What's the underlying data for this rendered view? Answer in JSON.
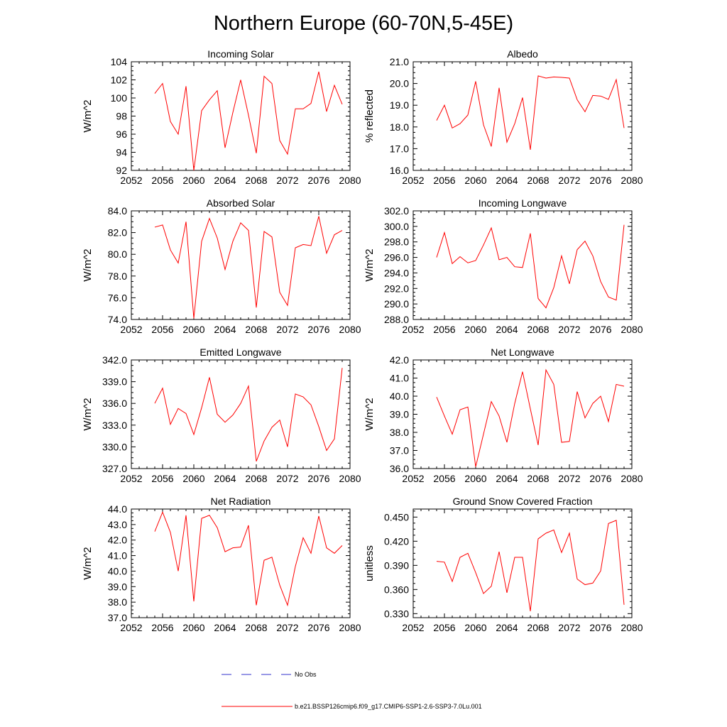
{
  "figure": {
    "title": "Northern Europe (60-70N,5-45E)"
  },
  "legend": {
    "entries": [
      {
        "label": "No Obs",
        "color": "#3333cc",
        "dashed": true
      },
      {
        "label": "b.e21.BSSP126cmip6.f09_g17.CMIP6-SSP1-2.6-SSP3-7.0Lu.001",
        "color": "#ff0000",
        "dashed": false
      }
    ]
  },
  "chart_data": [
    {
      "type": "line",
      "title": "Incoming Solar",
      "ylabel": "W/m^2",
      "xlim": [
        2052,
        2080
      ],
      "ylim": [
        92,
        104
      ],
      "xticks": [
        2052,
        2056,
        2060,
        2064,
        2068,
        2072,
        2076,
        2080
      ],
      "yticks": [
        92,
        94,
        96,
        98,
        100,
        102,
        104
      ],
      "ytick_labels": [
        "92",
        "94",
        "96",
        "98",
        "100",
        "102",
        "104"
      ],
      "series": [
        {
          "color": "#ff0000",
          "x": [
            2055,
            2056,
            2057,
            2058,
            2059,
            2060,
            2061,
            2062,
            2063,
            2064,
            2065,
            2066,
            2067,
            2068,
            2069,
            2070,
            2071,
            2072,
            2073,
            2074,
            2075,
            2076,
            2077,
            2078,
            2079
          ],
          "y": [
            100.5,
            101.6,
            97.4,
            96.0,
            101.3,
            92.0,
            98.6,
            99.8,
            100.8,
            94.5,
            98.4,
            102.0,
            98.1,
            93.9,
            102.4,
            101.6,
            95.3,
            93.8,
            98.8,
            98.8,
            99.4,
            102.9,
            98.5,
            101.4,
            99.3
          ]
        }
      ]
    },
    {
      "type": "line",
      "title": "Albedo",
      "ylabel": "% reflected",
      "xlim": [
        2052,
        2080
      ],
      "ylim": [
        16,
        21
      ],
      "xticks": [
        2052,
        2056,
        2060,
        2064,
        2068,
        2072,
        2076,
        2080
      ],
      "yticks": [
        16,
        17,
        18,
        19,
        20,
        21
      ],
      "ytick_labels": [
        "16.0",
        "17.0",
        "18.0",
        "19.0",
        "20.0",
        "21.0"
      ],
      "series": [
        {
          "color": "#ff0000",
          "x": [
            2055,
            2056,
            2057,
            2058,
            2059,
            2060,
            2061,
            2062,
            2063,
            2064,
            2065,
            2066,
            2067,
            2068,
            2069,
            2070,
            2071,
            2072,
            2073,
            2074,
            2075,
            2076,
            2077,
            2078,
            2079
          ],
          "y": [
            18.3,
            19.0,
            17.95,
            18.15,
            18.55,
            20.1,
            18.1,
            17.1,
            19.8,
            17.3,
            18.15,
            19.35,
            16.95,
            20.35,
            20.25,
            20.3,
            20.28,
            20.25,
            19.25,
            18.7,
            19.45,
            19.42,
            19.27,
            20.18,
            17.95
          ]
        }
      ]
    },
    {
      "type": "line",
      "title": "Absorbed Solar",
      "ylabel": "W/m^2",
      "xlim": [
        2052,
        2080
      ],
      "ylim": [
        74,
        84
      ],
      "xticks": [
        2052,
        2056,
        2060,
        2064,
        2068,
        2072,
        2076,
        2080
      ],
      "yticks": [
        74,
        76,
        78,
        80,
        82,
        84
      ],
      "ytick_labels": [
        "74.0",
        "76.0",
        "78.0",
        "80.0",
        "82.0",
        "84.0"
      ],
      "series": [
        {
          "color": "#ff0000",
          "x": [
            2055,
            2056,
            2057,
            2058,
            2059,
            2060,
            2061,
            2062,
            2063,
            2064,
            2065,
            2066,
            2067,
            2068,
            2069,
            2070,
            2071,
            2072,
            2073,
            2074,
            2075,
            2076,
            2077,
            2078,
            2079
          ],
          "y": [
            82.5,
            82.7,
            80.4,
            79.2,
            83.0,
            74.1,
            81.2,
            83.3,
            81.5,
            78.6,
            81.2,
            82.9,
            82.2,
            75.1,
            82.1,
            81.6,
            76.5,
            75.3,
            80.6,
            80.9,
            80.8,
            83.5,
            80.1,
            81.8,
            82.2
          ]
        }
      ]
    },
    {
      "type": "line",
      "title": "Incoming Longwave",
      "ylabel": "W/m^2",
      "xlim": [
        2052,
        2080
      ],
      "ylim": [
        288,
        302
      ],
      "xticks": [
        2052,
        2056,
        2060,
        2064,
        2068,
        2072,
        2076,
        2080
      ],
      "yticks": [
        288,
        290,
        292,
        294,
        296,
        298,
        300,
        302
      ],
      "ytick_labels": [
        "288.0",
        "290.0",
        "292.0",
        "294.0",
        "296.0",
        "298.0",
        "300.0",
        "302.0"
      ],
      "series": [
        {
          "color": "#ff0000",
          "x": [
            2055,
            2056,
            2057,
            2058,
            2059,
            2060,
            2061,
            2062,
            2063,
            2064,
            2065,
            2066,
            2067,
            2068,
            2069,
            2070,
            2071,
            2072,
            2073,
            2074,
            2075,
            2076,
            2077,
            2078,
            2079
          ],
          "y": [
            296.0,
            299.2,
            295.2,
            296.1,
            295.3,
            295.6,
            297.6,
            299.8,
            295.7,
            296.0,
            294.8,
            294.7,
            299.1,
            290.7,
            289.5,
            292.1,
            296.2,
            292.6,
            297.0,
            298.1,
            296.2,
            292.9,
            290.9,
            290.5,
            300.2
          ]
        }
      ]
    },
    {
      "type": "line",
      "title": "Emitted Longwave",
      "ylabel": "W/m^2",
      "xlim": [
        2052,
        2080
      ],
      "ylim": [
        327,
        342
      ],
      "xticks": [
        2052,
        2056,
        2060,
        2064,
        2068,
        2072,
        2076,
        2080
      ],
      "yticks": [
        327,
        330,
        333,
        336,
        339,
        342
      ],
      "ytick_labels": [
        "327.0",
        "330.0",
        "333.0",
        "336.0",
        "339.0",
        "342.0"
      ],
      "series": [
        {
          "color": "#ff0000",
          "x": [
            2055,
            2056,
            2057,
            2058,
            2059,
            2060,
            2061,
            2062,
            2063,
            2064,
            2065,
            2066,
            2067,
            2068,
            2069,
            2070,
            2071,
            2072,
            2073,
            2074,
            2075,
            2076,
            2077,
            2078,
            2079
          ],
          "y": [
            336.0,
            338.1,
            333.1,
            335.3,
            334.6,
            331.7,
            335.4,
            339.6,
            334.5,
            333.4,
            334.4,
            336.0,
            338.4,
            328.0,
            330.8,
            332.7,
            333.7,
            330.0,
            337.3,
            336.9,
            335.8,
            332.8,
            329.5,
            331.1,
            340.9
          ]
        }
      ]
    },
    {
      "type": "line",
      "title": "Net Longwave",
      "ylabel": "W/m^2",
      "xlim": [
        2052,
        2080
      ],
      "ylim": [
        36,
        42
      ],
      "xticks": [
        2052,
        2056,
        2060,
        2064,
        2068,
        2072,
        2076,
        2080
      ],
      "yticks": [
        36,
        37,
        38,
        39,
        40,
        41,
        42
      ],
      "ytick_labels": [
        "36.0",
        "37.0",
        "38.0",
        "39.0",
        "40.0",
        "41.0",
        "42.0"
      ],
      "series": [
        {
          "color": "#ff0000",
          "x": [
            2055,
            2056,
            2057,
            2058,
            2059,
            2060,
            2061,
            2062,
            2063,
            2064,
            2065,
            2066,
            2067,
            2068,
            2069,
            2070,
            2071,
            2072,
            2073,
            2074,
            2075,
            2076,
            2077,
            2078,
            2079
          ],
          "y": [
            39.95,
            38.9,
            37.9,
            39.25,
            39.4,
            36.1,
            37.9,
            39.7,
            38.9,
            37.45,
            39.6,
            41.35,
            39.3,
            37.3,
            41.45,
            40.65,
            37.45,
            37.5,
            40.25,
            38.8,
            39.6,
            40.0,
            38.6,
            40.65,
            40.55
          ]
        }
      ]
    },
    {
      "type": "line",
      "title": "Net Radiation",
      "ylabel": "W/m^2",
      "xlim": [
        2052,
        2080
      ],
      "ylim": [
        37,
        44
      ],
      "xticks": [
        2052,
        2056,
        2060,
        2064,
        2068,
        2072,
        2076,
        2080
      ],
      "yticks": [
        37,
        38,
        39,
        40,
        41,
        42,
        43,
        44
      ],
      "ytick_labels": [
        "37.0",
        "38.0",
        "39.0",
        "40.0",
        "41.0",
        "42.0",
        "43.0",
        "44.0"
      ],
      "series": [
        {
          "color": "#ff0000",
          "x": [
            2055,
            2056,
            2057,
            2058,
            2059,
            2060,
            2061,
            2062,
            2063,
            2064,
            2065,
            2066,
            2067,
            2068,
            2069,
            2070,
            2071,
            2072,
            2073,
            2074,
            2075,
            2076,
            2077,
            2078,
            2079
          ],
          "y": [
            42.55,
            43.8,
            42.5,
            40.0,
            43.6,
            38.05,
            43.4,
            43.6,
            42.8,
            41.25,
            41.5,
            41.55,
            42.95,
            37.8,
            40.7,
            40.9,
            39.1,
            37.8,
            40.3,
            42.15,
            41.15,
            43.55,
            41.5,
            41.15,
            41.65
          ]
        }
      ]
    },
    {
      "type": "line",
      "title": "Ground Snow Covered Fraction",
      "ylabel": "unitless",
      "xlim": [
        2052,
        2080
      ],
      "ylim": [
        0.325,
        0.46
      ],
      "xticks": [
        2052,
        2056,
        2060,
        2064,
        2068,
        2072,
        2076,
        2080
      ],
      "yticks": [
        0.33,
        0.36,
        0.39,
        0.42,
        0.45
      ],
      "ytick_labels": [
        "0.330",
        "0.360",
        "0.390",
        "0.420",
        "0.450"
      ],
      "series": [
        {
          "color": "#ff0000",
          "x": [
            2055,
            2056,
            2057,
            2058,
            2059,
            2060,
            2061,
            2062,
            2063,
            2064,
            2065,
            2066,
            2067,
            2068,
            2069,
            2070,
            2071,
            2072,
            2073,
            2074,
            2075,
            2076,
            2077,
            2078,
            2079
          ],
          "y": [
            0.395,
            0.394,
            0.37,
            0.4,
            0.405,
            0.381,
            0.355,
            0.364,
            0.407,
            0.356,
            0.4,
            0.4,
            0.333,
            0.423,
            0.43,
            0.434,
            0.406,
            0.43,
            0.373,
            0.366,
            0.368,
            0.383,
            0.442,
            0.446,
            0.341
          ]
        }
      ]
    }
  ]
}
